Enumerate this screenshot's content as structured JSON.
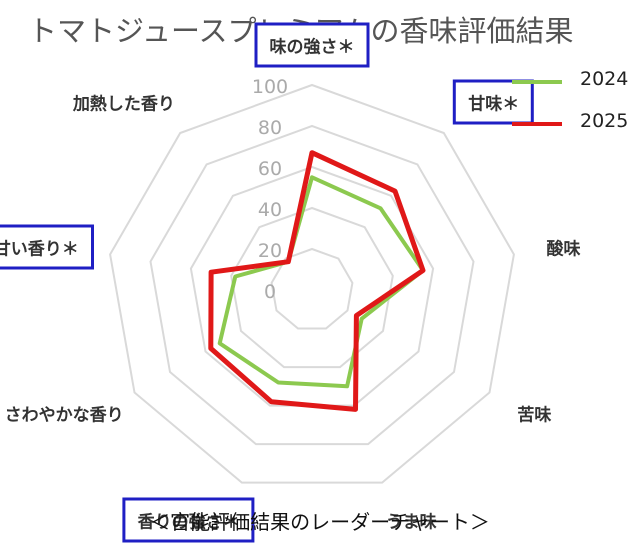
{
  "title": "トマトジュースプレミアムの香味評価結果",
  "caption": "＜官能評価結果のレーダーチャート＞",
  "colors": {
    "series_2024": "#8cc94f",
    "series_2025": "#e01818",
    "highlight_box": "#1f1fc4",
    "grid": "#d9d9d9",
    "tick": "#aaaaaa"
  },
  "chart_data": {
    "type": "radar",
    "axes": [
      "味の強さ＊",
      "甘味＊",
      "酸味",
      "苦味",
      "うま味",
      "香りの強さ＊",
      "さわやかな香り",
      "甘い香り＊",
      "加熱した香り"
    ],
    "highlighted_axes": [
      "味の強さ＊",
      "甘味＊",
      "香りの強さ＊",
      "甘い香り＊"
    ],
    "radial_ticks": [
      "0",
      "20",
      "40",
      "60",
      "80",
      "100"
    ],
    "rlim": [
      0,
      100
    ],
    "grid": true,
    "legend_position": "top-right",
    "series": [
      {
        "name": "2024",
        "values": [
          55,
          52,
          55,
          28,
          50,
          48,
          52,
          38,
          18
        ]
      },
      {
        "name": "2025",
        "values": [
          67,
          63,
          55,
          25,
          62,
          58,
          57,
          50,
          18
        ]
      }
    ]
  }
}
